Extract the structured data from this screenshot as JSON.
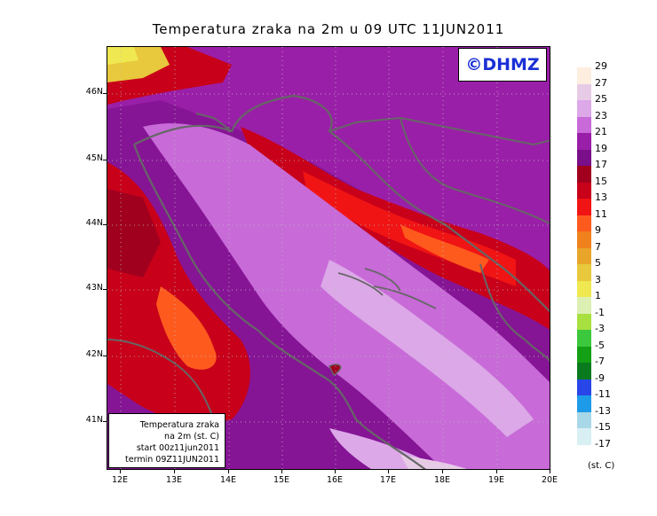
{
  "title": "Temperatura zraka na 2m u 09 UTC 11JUN2011",
  "copyright": "©DHMZ",
  "info_box": {
    "line1": "Temperatura zraka",
    "line2": "na 2m (st. C)",
    "line3": "start 00z11jun2011",
    "line4": "termin 09Z11JUN2011"
  },
  "lat_labels": [
    "46N",
    "45N",
    "44N",
    "43N",
    "42N",
    "41N"
  ],
  "lon_labels": [
    "12E",
    "13E",
    "14E",
    "15E",
    "16E",
    "17E",
    "18E",
    "19E",
    "20E"
  ],
  "legend": {
    "units": "(st. C)",
    "levels": [
      {
        "label": "29",
        "color": "#fdeee0"
      },
      {
        "label": "27",
        "color": "#e7cbe6"
      },
      {
        "label": "25",
        "color": "#dca8e8"
      },
      {
        "label": "23",
        "color": "#c86ad8"
      },
      {
        "label": "21",
        "color": "#9a1fa8"
      },
      {
        "label": "19",
        "color": "#7a0f8a"
      },
      {
        "label": "17",
        "color": "#a0001e"
      },
      {
        "label": "15",
        "color": "#c8001a"
      },
      {
        "label": "13",
        "color": "#f01414"
      },
      {
        "label": "11",
        "color": "#ff5a1e"
      },
      {
        "label": "9",
        "color": "#f0821e"
      },
      {
        "label": "7",
        "color": "#e8a52a"
      },
      {
        "label": "5",
        "color": "#e8c83c"
      },
      {
        "label": "3",
        "color": "#f0e850"
      },
      {
        "label": "1",
        "color": "#dcf0b4"
      },
      {
        "label": "-1",
        "color": "#a8e040"
      },
      {
        "label": "-3",
        "color": "#3cc83c"
      },
      {
        "label": "-5",
        "color": "#14a014"
      },
      {
        "label": "-7",
        "color": "#0a7a1e"
      },
      {
        "label": "-9",
        "color": "#2846e8"
      },
      {
        "label": "-11",
        "color": "#1e9be8"
      },
      {
        "label": "-13",
        "color": "#a8d8e8"
      },
      {
        "label": "-15",
        "color": "#d8f0f4"
      },
      {
        "label": "-17",
        "color": "#f0fafc"
      }
    ]
  }
}
